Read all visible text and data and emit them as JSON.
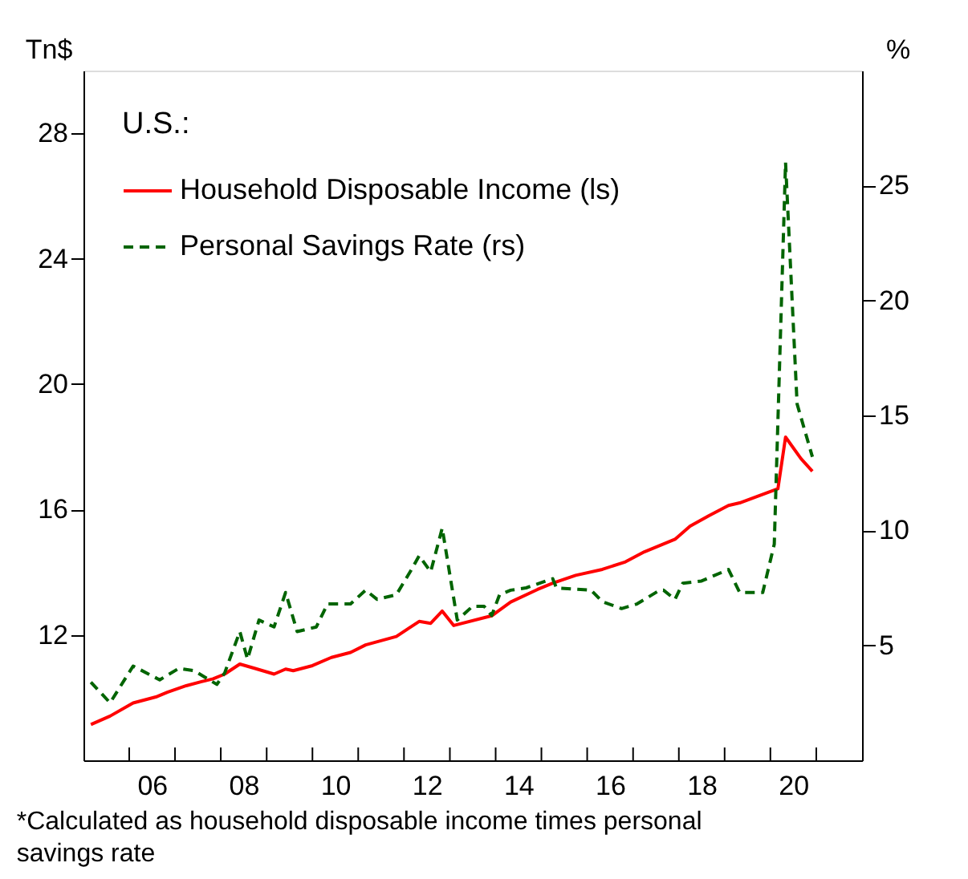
{
  "chart_data": {
    "type": "line",
    "legend_title": "U.S.:",
    "ylabel": "Tn$",
    "y2label": "%",
    "annotations": [
      "*Calculated as household disposable income times personal savings rate"
    ],
    "xlim": [
      "2005-01",
      "2022-01"
    ],
    "xticks": [
      {
        "value": "2006-01",
        "label": null
      },
      {
        "value": "2006-07",
        "label": "06"
      },
      {
        "value": "2007-01",
        "label": null
      },
      {
        "value": "2008-01",
        "label": null
      },
      {
        "value": "2008-07",
        "label": "08"
      },
      {
        "value": "2009-01",
        "label": null
      },
      {
        "value": "2010-01",
        "label": null
      },
      {
        "value": "2010-07",
        "label": "10"
      },
      {
        "value": "2011-01",
        "label": null
      },
      {
        "value": "2012-01",
        "label": null
      },
      {
        "value": "2012-07",
        "label": "12"
      },
      {
        "value": "2013-01",
        "label": null
      },
      {
        "value": "2014-01",
        "label": null
      },
      {
        "value": "2014-07",
        "label": "14"
      },
      {
        "value": "2015-01",
        "label": null
      },
      {
        "value": "2016-01",
        "label": null
      },
      {
        "value": "2016-07",
        "label": "16"
      },
      {
        "value": "2017-01",
        "label": null
      },
      {
        "value": "2018-01",
        "label": null
      },
      {
        "value": "2018-07",
        "label": "18"
      },
      {
        "value": "2019-01",
        "label": null
      },
      {
        "value": "2020-01",
        "label": null
      },
      {
        "value": "2020-07",
        "label": "20"
      },
      {
        "value": "2021-01",
        "label": null
      }
    ],
    "ylim": [
      8,
      30
    ],
    "yticks": [
      12,
      16,
      20,
      24,
      28
    ],
    "y2lim": [
      0,
      30
    ],
    "y2ticks": [
      5,
      10,
      15,
      20,
      25
    ],
    "grid": false,
    "legend": "top left",
    "marker": "none",
    "series": [
      {
        "name": "Household Disposable Income (ls)",
        "color": "#ff0000",
        "line_style": "solid",
        "x": [
          "2005-03",
          "2005-08",
          "2006-02",
          "2006-08",
          "2006-11",
          "2007-04",
          "2007-08",
          "2007-11",
          "2008-02",
          "2008-06",
          "2008-10",
          "2009-03",
          "2009-06",
          "2009-08",
          "2010-01",
          "2010-06",
          "2010-11",
          "2011-03",
          "2011-11",
          "2012-03",
          "2012-05",
          "2012-08",
          "2012-11",
          "2013-02",
          "2013-12",
          "2014-05",
          "2014-12",
          "2015-04",
          "2015-10",
          "2016-05",
          "2016-11",
          "2017-04",
          "2017-12",
          "2018-04",
          "2018-09",
          "2019-02",
          "2019-05",
          "2020-03",
          "2020-05",
          "2020-09",
          "2020-12"
        ],
        "values": [
          9.14,
          9.41,
          9.83,
          10.02,
          10.17,
          10.38,
          10.51,
          10.6,
          10.75,
          11.07,
          10.93,
          10.75,
          10.91,
          10.86,
          11.02,
          11.28,
          11.44,
          11.68,
          11.95,
          12.27,
          12.43,
          12.37,
          12.76,
          12.3,
          12.61,
          13.05,
          13.45,
          13.65,
          13.9,
          14.09,
          14.33,
          14.65,
          15.05,
          15.47,
          15.81,
          16.13,
          16.21,
          16.66,
          18.31,
          17.62,
          17.22
        ]
      },
      {
        "name": "Personal Savings Rate (rs)",
        "color": "#006400",
        "line_style": "dashed",
        "axis": "y2",
        "x": [
          "2005-03",
          "2005-08",
          "2006-02",
          "2006-09",
          "2007-02",
          "2007-06",
          "2007-12",
          "2008-02",
          "2008-06",
          "2008-08",
          "2008-11",
          "2009-03",
          "2009-06",
          "2009-09",
          "2010-02",
          "2010-05",
          "2010-11",
          "2011-03",
          "2011-06",
          "2011-11",
          "2012-03",
          "2012-05",
          "2012-08",
          "2012-11",
          "2013-03",
          "2013-07",
          "2013-10",
          "2013-12",
          "2014-02",
          "2014-05",
          "2014-09",
          "2015-04",
          "2015-05",
          "2016-02",
          "2016-05",
          "2016-10",
          "2017-02",
          "2017-08",
          "2017-09",
          "2017-12",
          "2018-02",
          "2018-07",
          "2019-02",
          "2019-05",
          "2019-11",
          "2020-02",
          "2020-05",
          "2020-08",
          "2020-12"
        ],
        "values": [
          3.4,
          2.5,
          4.1,
          3.5,
          4.0,
          3.9,
          3.3,
          3.8,
          5.6,
          4.4,
          6.1,
          5.8,
          7.3,
          5.6,
          5.8,
          6.8,
          6.8,
          7.4,
          7.0,
          7.2,
          8.3,
          8.9,
          8.2,
          10.1,
          6.1,
          6.7,
          6.7,
          6.3,
          7.2,
          7.4,
          7.5,
          7.9,
          7.5,
          7.4,
          6.9,
          6.6,
          6.8,
          7.4,
          7.4,
          7.0,
          7.7,
          7.8,
          8.3,
          7.3,
          7.3,
          9.4,
          26.0,
          15.5,
          13.2
        ]
      }
    ]
  }
}
